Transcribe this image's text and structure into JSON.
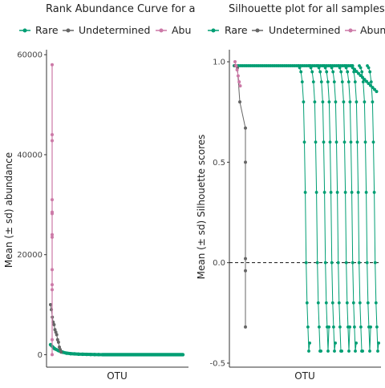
{
  "panels": {
    "left": {
      "title": "Rank Abundance Curve for a",
      "legend": [
        {
          "label": "Rare",
          "color": "#009E73"
        },
        {
          "label": "Undetermined",
          "color": "#666666"
        },
        {
          "label": "Abu",
          "color": "#CC79A7"
        }
      ]
    },
    "right": {
      "title": "Silhouette plot for all samples",
      "legend": [
        {
          "label": "Rare",
          "color": "#009E73"
        },
        {
          "label": "Undetermined",
          "color": "#666666"
        },
        {
          "label": "Abun",
          "color": "#CC79A7"
        }
      ]
    }
  },
  "chart_data": [
    {
      "type": "line",
      "title": "Rank Abundance Curve for a",
      "xlabel": "OTU",
      "ylabel": "Mean (± sd) abundance",
      "ylim": [
        -2500,
        61000
      ],
      "yticks": [
        0,
        20000,
        40000,
        60000
      ],
      "ytick_labels": [
        "0",
        "20000",
        "40000",
        "60000"
      ],
      "grid": false,
      "legend_position": "top",
      "series": [
        {
          "name": "Abundant",
          "color": "#CC79A7",
          "style": "vertical spike at first rank",
          "values": [
            58000,
            44000,
            42800,
            31000,
            28500,
            28200,
            24000,
            23500,
            17000,
            14000,
            13000,
            3000,
            0
          ]
        },
        {
          "name": "Undetermined",
          "color": "#666666",
          "values": [
            10000,
            9000,
            7500,
            6500,
            6000,
            5000,
            4500,
            4000,
            3000,
            2500,
            1500,
            1000,
            500
          ]
        },
        {
          "name": "Rare",
          "color": "#009E73",
          "values": [
            2000,
            1200,
            800,
            500,
            300,
            200,
            150,
            100,
            80,
            60,
            40,
            20,
            10
          ]
        }
      ]
    },
    {
      "type": "scatter",
      "title": "Silhouette plot for all samples",
      "xlabel": "OTU",
      "ylabel": "Mean (± sd) Silhouette scores",
      "ylim": [
        -0.52,
        1.06
      ],
      "yticks": [
        -0.5,
        0,
        0.5,
        1
      ],
      "ytick_labels": [
        "-0.5",
        "0.0",
        "0.5",
        "1.0"
      ],
      "reference_line": {
        "y": 0,
        "style": "dashed"
      },
      "grid": false,
      "legend_position": "top",
      "series": [
        {
          "name": "Abundant",
          "color": "#CC79A7",
          "values": [
            1.0,
            0.98,
            0.96,
            0.93,
            0.9,
            0.88
          ]
        },
        {
          "name": "Undetermined",
          "color": "#666666",
          "values": [
            0.98,
            0.97,
            0.8,
            0.67,
            0.5,
            0.02,
            -0.04,
            -0.32
          ]
        },
        {
          "name": "Rare",
          "color": "#009E73",
          "values": [
            0.98,
            0.97,
            0.95,
            0.9,
            0.8,
            0.6,
            0.35,
            0.0,
            -0.2,
            -0.32,
            -0.44,
            -0.4
          ]
        }
      ]
    }
  ]
}
